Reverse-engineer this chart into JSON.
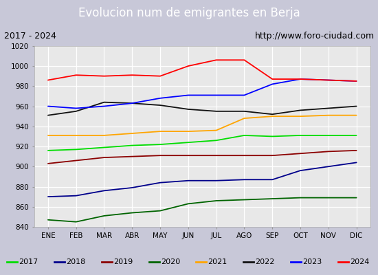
{
  "title": "Evolucion num de emigrantes en Berja",
  "subtitle_left": "2017 - 2024",
  "subtitle_right": "http://www.foro-ciudad.com",
  "ylim": [
    840,
    1020
  ],
  "months": [
    "ENE",
    "FEB",
    "MAR",
    "ABR",
    "MAY",
    "JUN",
    "JUL",
    "AGO",
    "SEP",
    "OCT",
    "NOV",
    "DIC"
  ],
  "series": {
    "2017": {
      "color": "#00dd00",
      "data": [
        916,
        917,
        919,
        921,
        922,
        924,
        926,
        931,
        930,
        931,
        931,
        931
      ]
    },
    "2018": {
      "color": "#00008b",
      "data": [
        870,
        871,
        876,
        879,
        884,
        886,
        886,
        887,
        887,
        896,
        900,
        904
      ]
    },
    "2019": {
      "color": "#8b0000",
      "data": [
        903,
        906,
        909,
        910,
        911,
        911,
        911,
        911,
        911,
        913,
        915,
        916
      ]
    },
    "2020": {
      "color": "#006400",
      "data": [
        847,
        845,
        851,
        854,
        856,
        863,
        866,
        867,
        868,
        869,
        869,
        869
      ]
    },
    "2021": {
      "color": "#ffa500",
      "data": [
        931,
        931,
        931,
        933,
        935,
        935,
        936,
        948,
        950,
        950,
        951,
        951
      ]
    },
    "2022": {
      "color": "#111111",
      "data": [
        951,
        955,
        964,
        963,
        961,
        957,
        955,
        955,
        952,
        956,
        958,
        960
      ]
    },
    "2023": {
      "color": "#0000ff",
      "data": [
        960,
        958,
        960,
        963,
        968,
        971,
        971,
        971,
        982,
        987,
        986,
        985
      ]
    },
    "2024": {
      "color": "#ff0000",
      "data": [
        986,
        991,
        990,
        991,
        990,
        1000,
        1006,
        1006,
        987,
        987,
        986,
        985
      ]
    }
  },
  "title_bg": "#5b8dd9",
  "title_color": "#ffffff",
  "plot_bg": "#e8e8e8",
  "outer_bg": "#c8c8d8",
  "grid_color": "#ffffff",
  "legend_order": [
    "2017",
    "2018",
    "2019",
    "2020",
    "2021",
    "2022",
    "2023",
    "2024"
  ],
  "title_fontsize": 12,
  "tick_fontsize": 7.5,
  "legend_fontsize": 8
}
